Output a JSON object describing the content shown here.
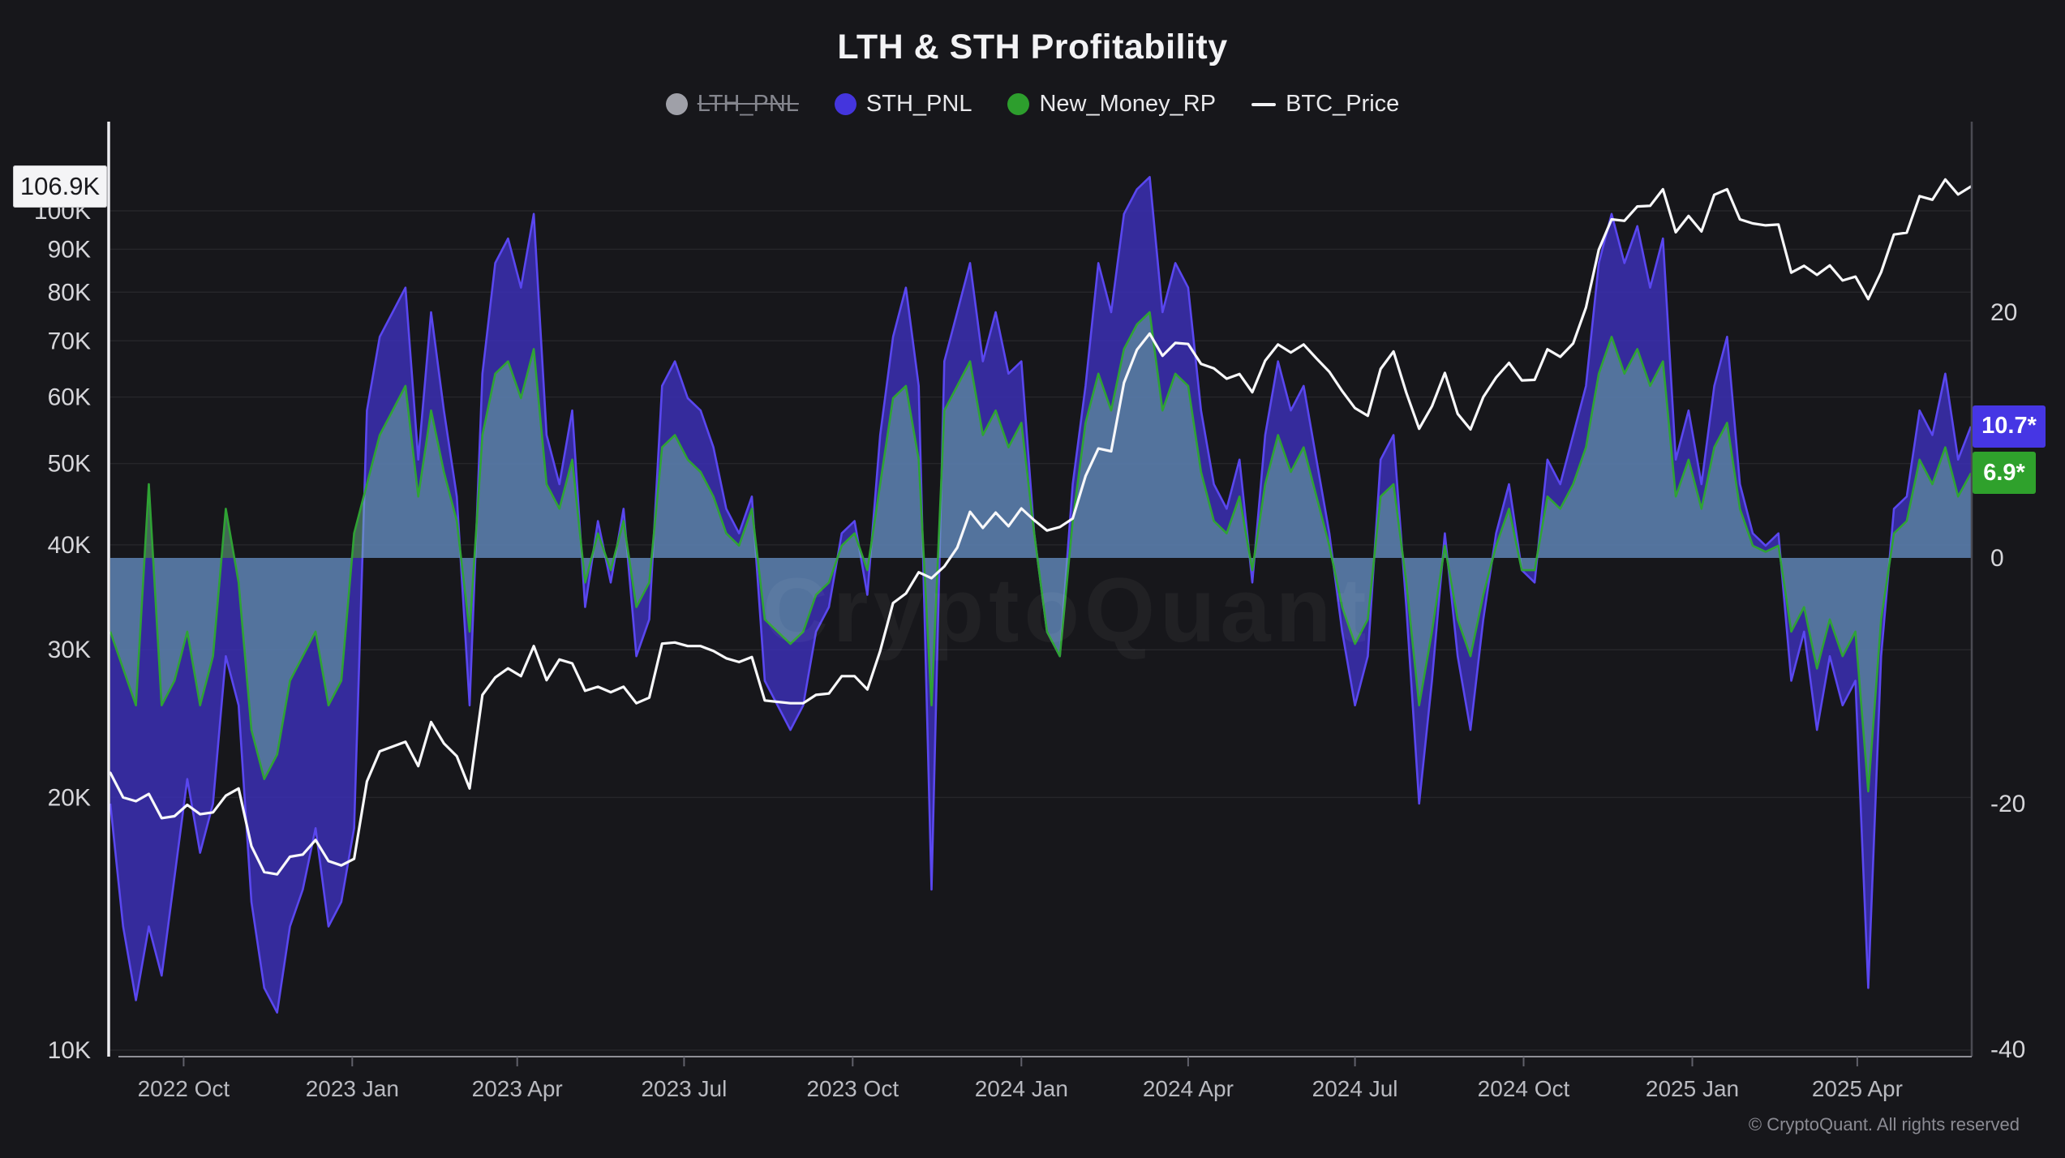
{
  "title": "LTH & STH Profitability",
  "legend": {
    "items": [
      {
        "label": "LTH_PNL",
        "color": "#9fa0a8",
        "marker": "dot",
        "disabled": true
      },
      {
        "label": "STH_PNL",
        "color": "#4435dd",
        "marker": "dot",
        "disabled": false
      },
      {
        "label": "New_Money_RP",
        "color": "#2d9e2d",
        "marker": "dot",
        "disabled": false
      },
      {
        "label": "BTC_Price",
        "color": "#f2f2f4",
        "marker": "line",
        "disabled": false
      }
    ]
  },
  "badges": {
    "price": "106.9K",
    "sth_last": "10.7*",
    "new_money_last": "6.9*"
  },
  "watermark": "CryptoQuant",
  "copyright": "© CryptoQuant. All rights reserved",
  "chart_data": {
    "type": "area",
    "title": "LTH & STH Profitability",
    "x_start_date": "2022-08-22",
    "x_interval_days": 7,
    "x_ticks": [
      {
        "date": "2022-10-01",
        "label": "2022 Oct"
      },
      {
        "date": "2023-01-01",
        "label": "2023 Jan"
      },
      {
        "date": "2023-04-01",
        "label": "2023 Apr"
      },
      {
        "date": "2023-07-01",
        "label": "2023 Jul"
      },
      {
        "date": "2023-10-01",
        "label": "2023 Oct"
      },
      {
        "date": "2024-01-01",
        "label": "2024 Jan"
      },
      {
        "date": "2024-04-01",
        "label": "2024 Apr"
      },
      {
        "date": "2024-07-01",
        "label": "2024 Jul"
      },
      {
        "date": "2024-10-01",
        "label": "2024 Oct"
      },
      {
        "date": "2025-01-01",
        "label": "2025 Jan"
      },
      {
        "date": "2025-04-01",
        "label": "2025 Apr"
      }
    ],
    "left_axis": {
      "type": "log",
      "unit": "USD",
      "ticks": [
        10000,
        20000,
        30000,
        40000,
        50000,
        60000,
        70000,
        80000,
        90000,
        100000
      ],
      "tick_labels": [
        "10K",
        "20K",
        "30K",
        "40K",
        "50K",
        "60K",
        "70K",
        "80K",
        "90K",
        "100K"
      ],
      "last_value_label": "106.9K"
    },
    "right_axis": {
      "type": "linear",
      "ticks": [
        20,
        0,
        -20,
        -40
      ],
      "range_shown": [
        -40,
        40
      ]
    },
    "grid": "horizontal-only",
    "legend_position": "top-center",
    "series": [
      {
        "name": "STH_PNL",
        "axis": "right",
        "style": "area",
        "stroke": "#5a47f0",
        "fill": "rgba(60,48,185,0.82)",
        "last_value": 10.7,
        "values": [
          -20,
          -30,
          -36,
          -30,
          -34,
          -26,
          -18,
          -24,
          -20,
          -8,
          -12,
          -28,
          -35,
          -37,
          -30,
          -27,
          -22,
          -30,
          -28,
          -22,
          12,
          18,
          20,
          22,
          8,
          20,
          12,
          5,
          -12,
          15,
          24,
          26,
          22,
          28,
          10,
          6,
          12,
          -4,
          3,
          -2,
          4,
          -8,
          -5,
          14,
          16,
          13,
          12,
          9,
          4,
          2,
          5,
          -10,
          -12,
          -14,
          -12,
          -6,
          -4,
          2,
          3,
          -3,
          10,
          18,
          22,
          14,
          -27,
          16,
          20,
          24,
          16,
          20,
          15,
          16,
          2,
          -6,
          -8,
          6,
          14,
          24,
          20,
          28,
          30,
          31,
          20,
          24,
          22,
          12,
          6,
          4,
          8,
          -2,
          10,
          16,
          12,
          14,
          8,
          2,
          -6,
          -12,
          -8,
          8,
          10,
          -4,
          -20,
          -10,
          2,
          -8,
          -14,
          -5,
          2,
          6,
          -1,
          -2,
          8,
          6,
          10,
          14,
          24,
          28,
          24,
          27,
          22,
          26,
          8,
          12,
          6,
          14,
          18,
          6,
          2,
          1,
          2,
          -10,
          -6,
          -14,
          -8,
          -12,
          -10,
          -35,
          -8,
          4,
          5,
          12,
          10,
          15,
          8,
          10.7
        ]
      },
      {
        "name": "New_Money_RP",
        "axis": "right",
        "style": "area",
        "stroke": "#2fa334",
        "fill": "rgba(120,205,160,0.45)",
        "last_value": 6.9,
        "values": [
          -6,
          -9,
          -12,
          6,
          -12,
          -10,
          -6,
          -12,
          -8,
          4,
          -2,
          -14,
          -18,
          -16,
          -10,
          -8,
          -6,
          -12,
          -10,
          2,
          6,
          10,
          12,
          14,
          5,
          12,
          7,
          3,
          -6,
          10,
          15,
          16,
          13,
          17,
          6,
          4,
          8,
          -2,
          2,
          -1,
          3,
          -4,
          -2,
          9,
          10,
          8,
          7,
          5,
          2,
          1,
          4,
          -5,
          -6,
          -7,
          -6,
          -3,
          -2,
          1,
          2,
          -1,
          6,
          13,
          14,
          8,
          -12,
          12,
          14,
          16,
          10,
          12,
          9,
          11,
          2,
          -6,
          -8,
          3,
          11,
          15,
          12,
          17,
          19,
          20,
          12,
          15,
          14,
          7,
          3,
          2,
          5,
          -1,
          6,
          10,
          7,
          9,
          5,
          1,
          -4,
          -7,
          -5,
          5,
          6,
          -2,
          -12,
          -6,
          1,
          -5,
          -8,
          -3,
          1,
          4,
          -1,
          -1,
          5,
          4,
          6,
          9,
          15,
          18,
          15,
          17,
          14,
          16,
          5,
          8,
          4,
          9,
          11,
          4,
          1,
          0.5,
          1,
          -6,
          -4,
          -9,
          -5,
          -8,
          -6,
          -19,
          -5,
          2,
          3,
          8,
          6,
          9,
          5,
          6.9
        ]
      },
      {
        "name": "BTC_Price",
        "axis": "left",
        "style": "line",
        "unit": "K_USD",
        "stroke": "#f8f8fa",
        "last_value": 106.9,
        "values": [
          21.4,
          20.0,
          19.8,
          20.2,
          18.9,
          19.0,
          19.6,
          19.1,
          19.2,
          20.1,
          20.5,
          17.5,
          16.3,
          16.2,
          17.0,
          17.1,
          17.8,
          16.8,
          16.6,
          16.9,
          20.9,
          22.7,
          23.0,
          23.3,
          21.8,
          24.6,
          23.2,
          22.4,
          20.5,
          26.5,
          27.8,
          28.5,
          27.9,
          30.3,
          27.6,
          29.2,
          28.9,
          26.8,
          27.1,
          26.7,
          27.1,
          25.9,
          26.3,
          30.5,
          30.6,
          30.3,
          30.3,
          29.9,
          29.3,
          29.0,
          29.4,
          26.1,
          26.0,
          25.9,
          25.9,
          26.5,
          26.6,
          27.9,
          27.9,
          26.9,
          29.9,
          34.1,
          35.0,
          37.1,
          36.5,
          37.7,
          39.7,
          43.8,
          41.9,
          43.7,
          42.1,
          44.2,
          42.8,
          41.6,
          42.0,
          43.0,
          48.3,
          52.1,
          51.7,
          62.4,
          68.3,
          71.4,
          67.2,
          69.6,
          69.4,
          65.7,
          64.9,
          63.1,
          63.9,
          60.8,
          66.3,
          69.3,
          67.8,
          69.3,
          66.7,
          64.3,
          61.0,
          58.2,
          57.0,
          64.8,
          68.0,
          60.7,
          55.0,
          58.5,
          64.1,
          57.3,
          54.9,
          60.0,
          63.3,
          65.9,
          62.8,
          62.9,
          68.4,
          67.0,
          69.5,
          76.7,
          89.9,
          97.7,
          97.3,
          101.2,
          101.4,
          106.1,
          94.3,
          98.6,
          94.5,
          104.5,
          106.1,
          97.7,
          96.6,
          96.1,
          96.3,
          84.4,
          86.0,
          83.9,
          86.1,
          82.6,
          83.5,
          78.5,
          84.5,
          93.7,
          94.2,
          104.1,
          103.1,
          109.0,
          104.6,
          106.9
        ]
      },
      {
        "name": "LTH_PNL",
        "axis": "right",
        "style": "area",
        "hidden": true,
        "stroke": "#9fa0a8",
        "fill": "rgba(159,160,168,0.4)",
        "values": []
      }
    ]
  }
}
